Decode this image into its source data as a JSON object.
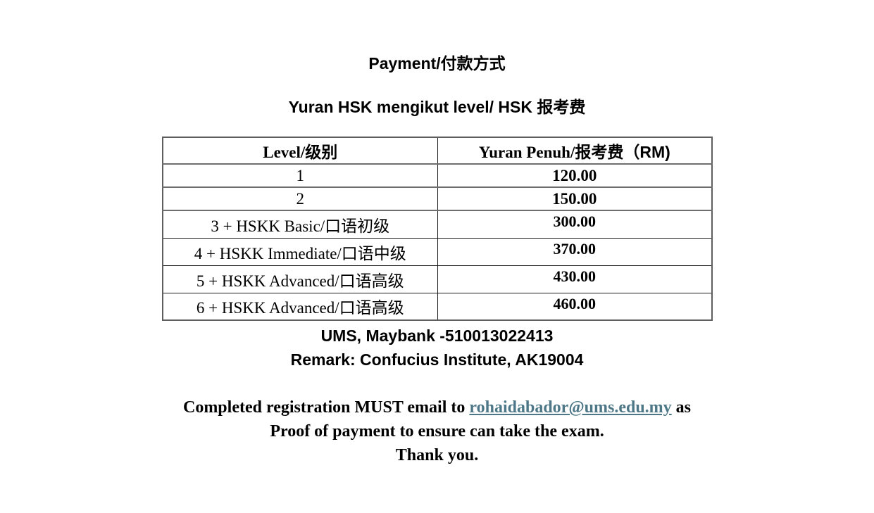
{
  "page": {
    "title": "Payment/付款方式",
    "subtitle": "Yuran HSK mengikut level/ HSK 报考费"
  },
  "table": {
    "headers": {
      "level": "Level/级别",
      "fee_label": "Yuran Penuh/报考费",
      "fee_unit": "（RM)"
    },
    "rows": [
      {
        "level": "1",
        "fee": "120.00"
      },
      {
        "level": "2",
        "fee": "150.00"
      },
      {
        "level": "3 + HSKK Basic/口语初级",
        "fee": "300.00"
      },
      {
        "level": "4 + HSKK Immediate/口语中级",
        "fee": "370.00"
      },
      {
        "level": "5 + HSKK Advanced/口语高级",
        "fee": "430.00"
      },
      {
        "level": "6 + HSKK Advanced/口语高级",
        "fee": "460.00"
      }
    ]
  },
  "bank_info": {
    "account_line": "UMS, Maybank -510013022413",
    "remark_line": "Remark: Confucius Institute, AK19004"
  },
  "footer": {
    "line1_before": "Completed registration MUST email to ",
    "email": "rohaidabador@ums.edu.my",
    "line1_after": " as",
    "line2": "Proof of payment to ensure can take the exam.",
    "line3": "Thank you."
  },
  "colors": {
    "link": "#4d7787",
    "table_border": "#1a1a1a",
    "text": "#000000",
    "background": "#ffffff"
  }
}
